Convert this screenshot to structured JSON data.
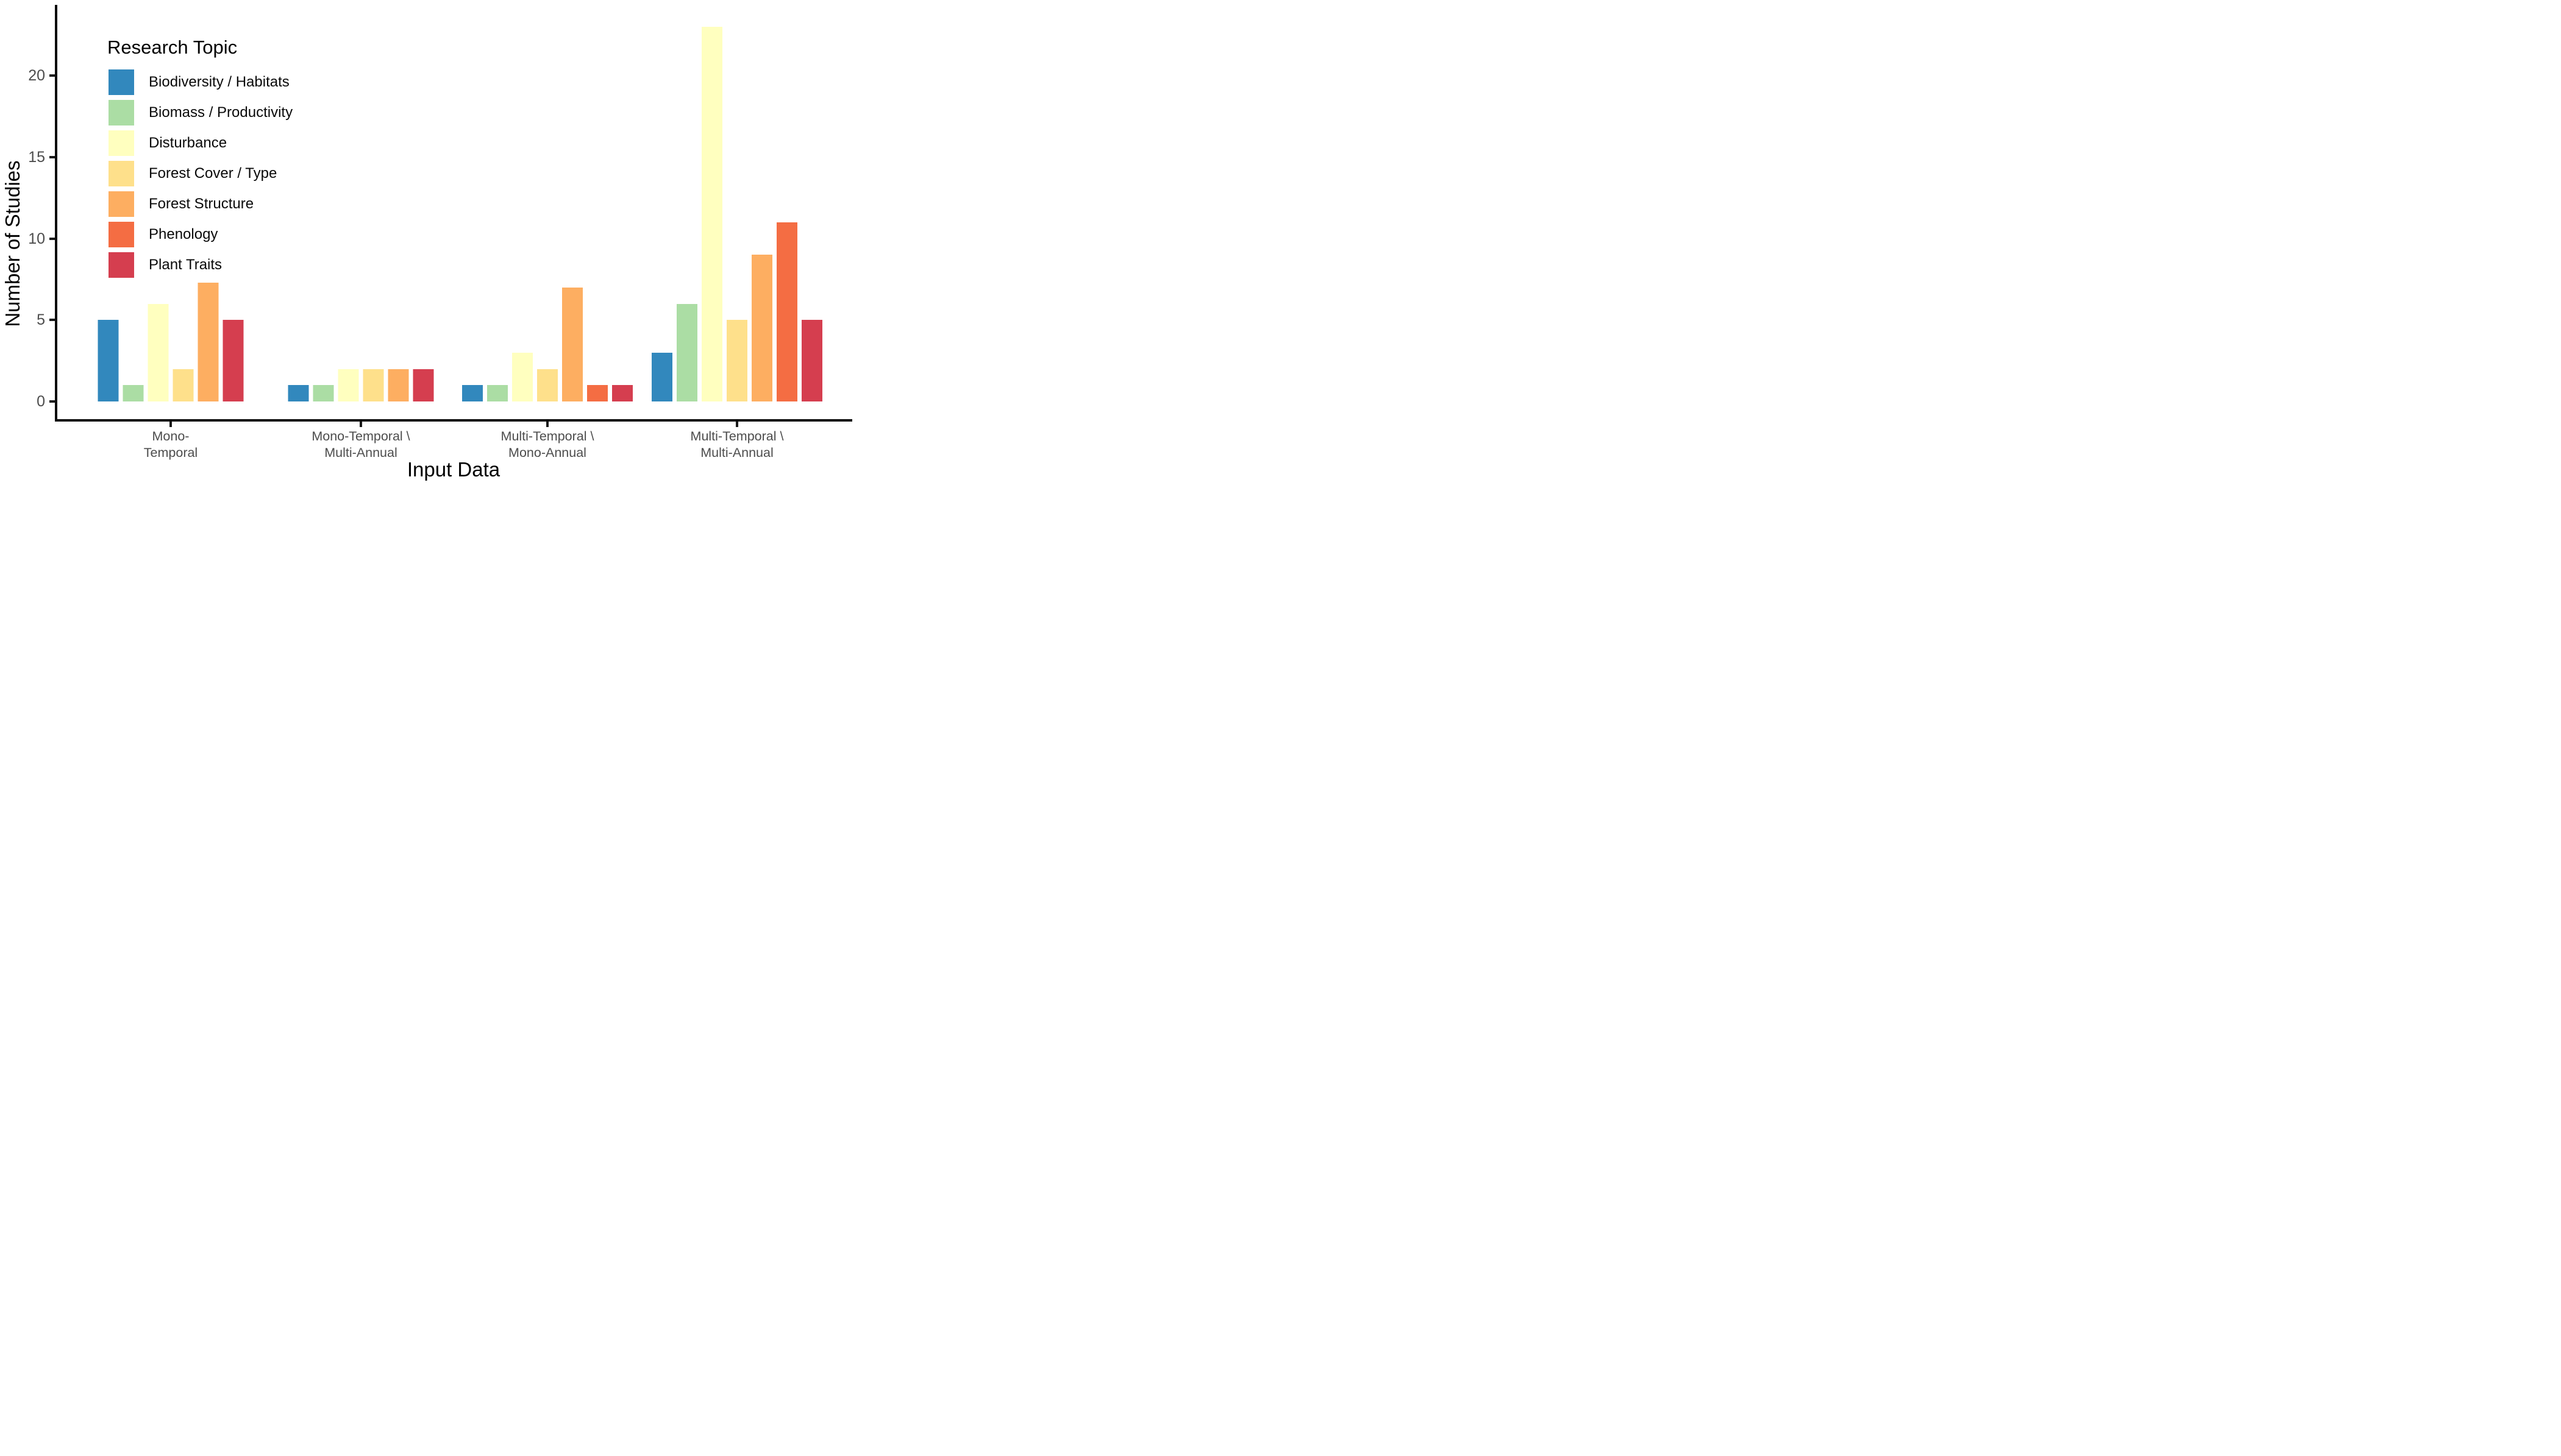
{
  "chart_data": {
    "type": "bar",
    "title": "",
    "xlabel": "Input Data",
    "ylabel": "Number of Studies",
    "legend_title": "Research Topic",
    "legend_position": "top-left-inside",
    "grid": false,
    "ylim": [
      0,
      23.5
    ],
    "yticks": [
      0,
      5,
      10,
      15,
      20
    ],
    "categories": [
      {
        "line1": "Mono-",
        "line2": "Temporal"
      },
      {
        "line1": "Mono-Temporal \\",
        "line2": "Multi-Annual"
      },
      {
        "line1": "Multi-Temporal \\",
        "line2": "Mono-Annual"
      },
      {
        "line1": "Multi-Temporal \\",
        "line2": "Multi-Annual"
      }
    ],
    "series": [
      {
        "name": "Biodiversity / Habitats",
        "color": "#3288BD",
        "values": [
          5,
          1,
          1,
          3
        ]
      },
      {
        "name": "Biomass / Productivity",
        "color": "#ABDDA4",
        "values": [
          1,
          1,
          1,
          6
        ]
      },
      {
        "name": "Disturbance",
        "color": "#FFFFBF",
        "values": [
          6,
          2,
          3,
          23
        ]
      },
      {
        "name": "Forest Cover / Type",
        "color": "#FEE08B",
        "values": [
          2,
          2,
          2,
          5
        ]
      },
      {
        "name": "Forest Structure",
        "color": "#FDAE61",
        "values": [
          7.3,
          2,
          7,
          9
        ]
      },
      {
        "name": "Phenology",
        "color": "#F46D43",
        "values": [
          0,
          0,
          1,
          11
        ]
      },
      {
        "name": "Plant Traits",
        "color": "#D53E4F",
        "values": [
          5,
          2,
          1,
          5
        ]
      }
    ],
    "colors": {
      "axis": "#0a0a0a",
      "axis_text": "#4d4d4d",
      "title_text": "#000000",
      "background": "#ffffff"
    }
  }
}
